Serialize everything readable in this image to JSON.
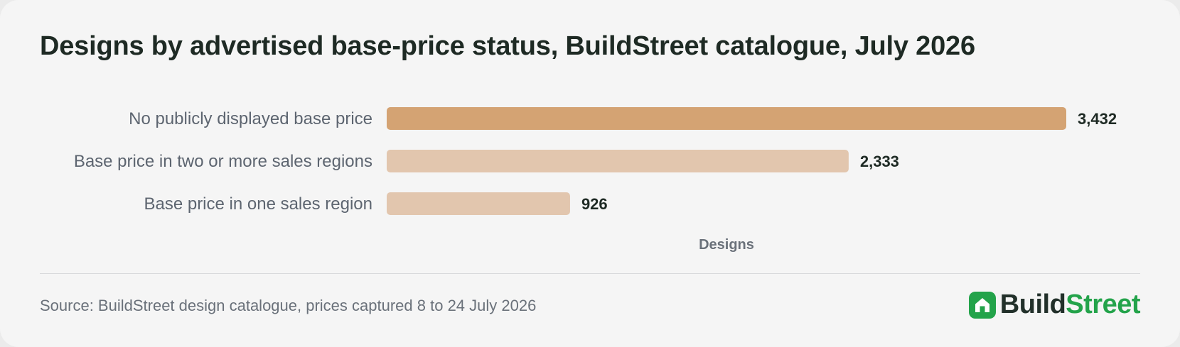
{
  "chart_data": {
    "type": "bar",
    "orientation": "horizontal",
    "title": "Designs by advertised base-price status, BuildStreet catalogue, July 2026",
    "xlabel": "Designs",
    "ylabel": "",
    "categories": [
      "No publicly displayed base price",
      "Base price in two or more sales regions",
      "Base price in one sales region"
    ],
    "values": [
      3432,
      2333,
      926
    ],
    "value_labels": [
      "3,432",
      "2,333",
      "926"
    ],
    "xlim": [
      0,
      3432
    ],
    "grid": false,
    "legend": "none",
    "colors": [
      "#d4a373",
      "#e2c6ae",
      "#e2c6ae"
    ]
  },
  "footer": {
    "source": "Source: BuildStreet design catalogue, prices captured 8 to 24 July 2026",
    "brand_part1": "Build",
    "brand_part2": "Street"
  },
  "colors": {
    "background": "#f5f5f5",
    "highlight_bar": "#d4a373",
    "muted_bar": "#e2c6ae",
    "brand_green": "#23a34a",
    "title_text": "#1e2a24"
  },
  "icons": {
    "brand": "house-icon"
  }
}
